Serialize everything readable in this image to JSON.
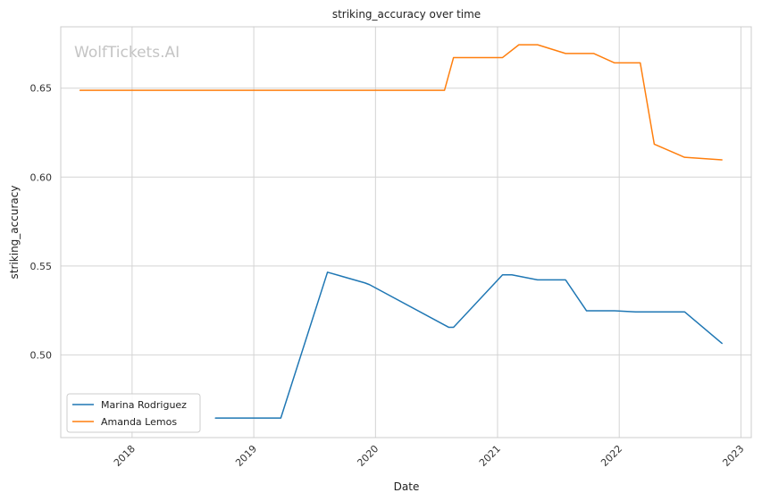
{
  "chart_data": {
    "type": "line",
    "title": "striking_accuracy over time",
    "xlabel": "Date",
    "ylabel": "striking_accuracy",
    "watermark": "WolfTickets.AI",
    "x_range": [
      "2017-06-01",
      "2023-02-01"
    ],
    "ylim": [
      0.4535,
      0.6845
    ],
    "x_ticks": [
      "2018",
      "2019",
      "2020",
      "2021",
      "2022",
      "2023"
    ],
    "y_ticks": [
      "0.50",
      "0.55",
      "0.60",
      "0.65"
    ],
    "grid": true,
    "legend_position": "lower-left",
    "series": [
      {
        "name": "Marina Rodriguez",
        "color": "#1f77b4",
        "points": [
          [
            "2018-09-08",
            0.4645
          ],
          [
            "2019-03-23",
            0.4645
          ],
          [
            "2019-08-10",
            0.5465
          ],
          [
            "2019-11-30",
            0.5405
          ],
          [
            "2019-12-14",
            0.5395
          ],
          [
            "2020-08-08",
            0.5155
          ],
          [
            "2020-08-22",
            0.5155
          ],
          [
            "2021-01-16",
            0.545
          ],
          [
            "2021-02-13",
            0.545
          ],
          [
            "2021-05-01",
            0.5422
          ],
          [
            "2021-07-24",
            0.5422
          ],
          [
            "2021-09-25",
            0.5248
          ],
          [
            "2021-12-18",
            0.5248
          ],
          [
            "2022-02-19",
            0.5242
          ],
          [
            "2022-07-16",
            0.5242
          ],
          [
            "2022-11-05",
            0.5065
          ]
        ]
      },
      {
        "name": "Amanda Lemos",
        "color": "#ff7f0e",
        "points": [
          [
            "2017-07-29",
            0.6488
          ],
          [
            "2020-07-26",
            0.6488
          ],
          [
            "2020-08-22",
            0.6672
          ],
          [
            "2021-01-16",
            0.6672
          ],
          [
            "2021-03-06",
            0.6744
          ],
          [
            "2021-05-01",
            0.6744
          ],
          [
            "2021-07-24",
            0.6695
          ],
          [
            "2021-10-16",
            0.6695
          ],
          [
            "2021-12-18",
            0.6642
          ],
          [
            "2022-03-05",
            0.6642
          ],
          [
            "2022-04-16",
            0.6185
          ],
          [
            "2022-07-16",
            0.6111
          ],
          [
            "2022-11-05",
            0.6097
          ]
        ]
      }
    ]
  }
}
